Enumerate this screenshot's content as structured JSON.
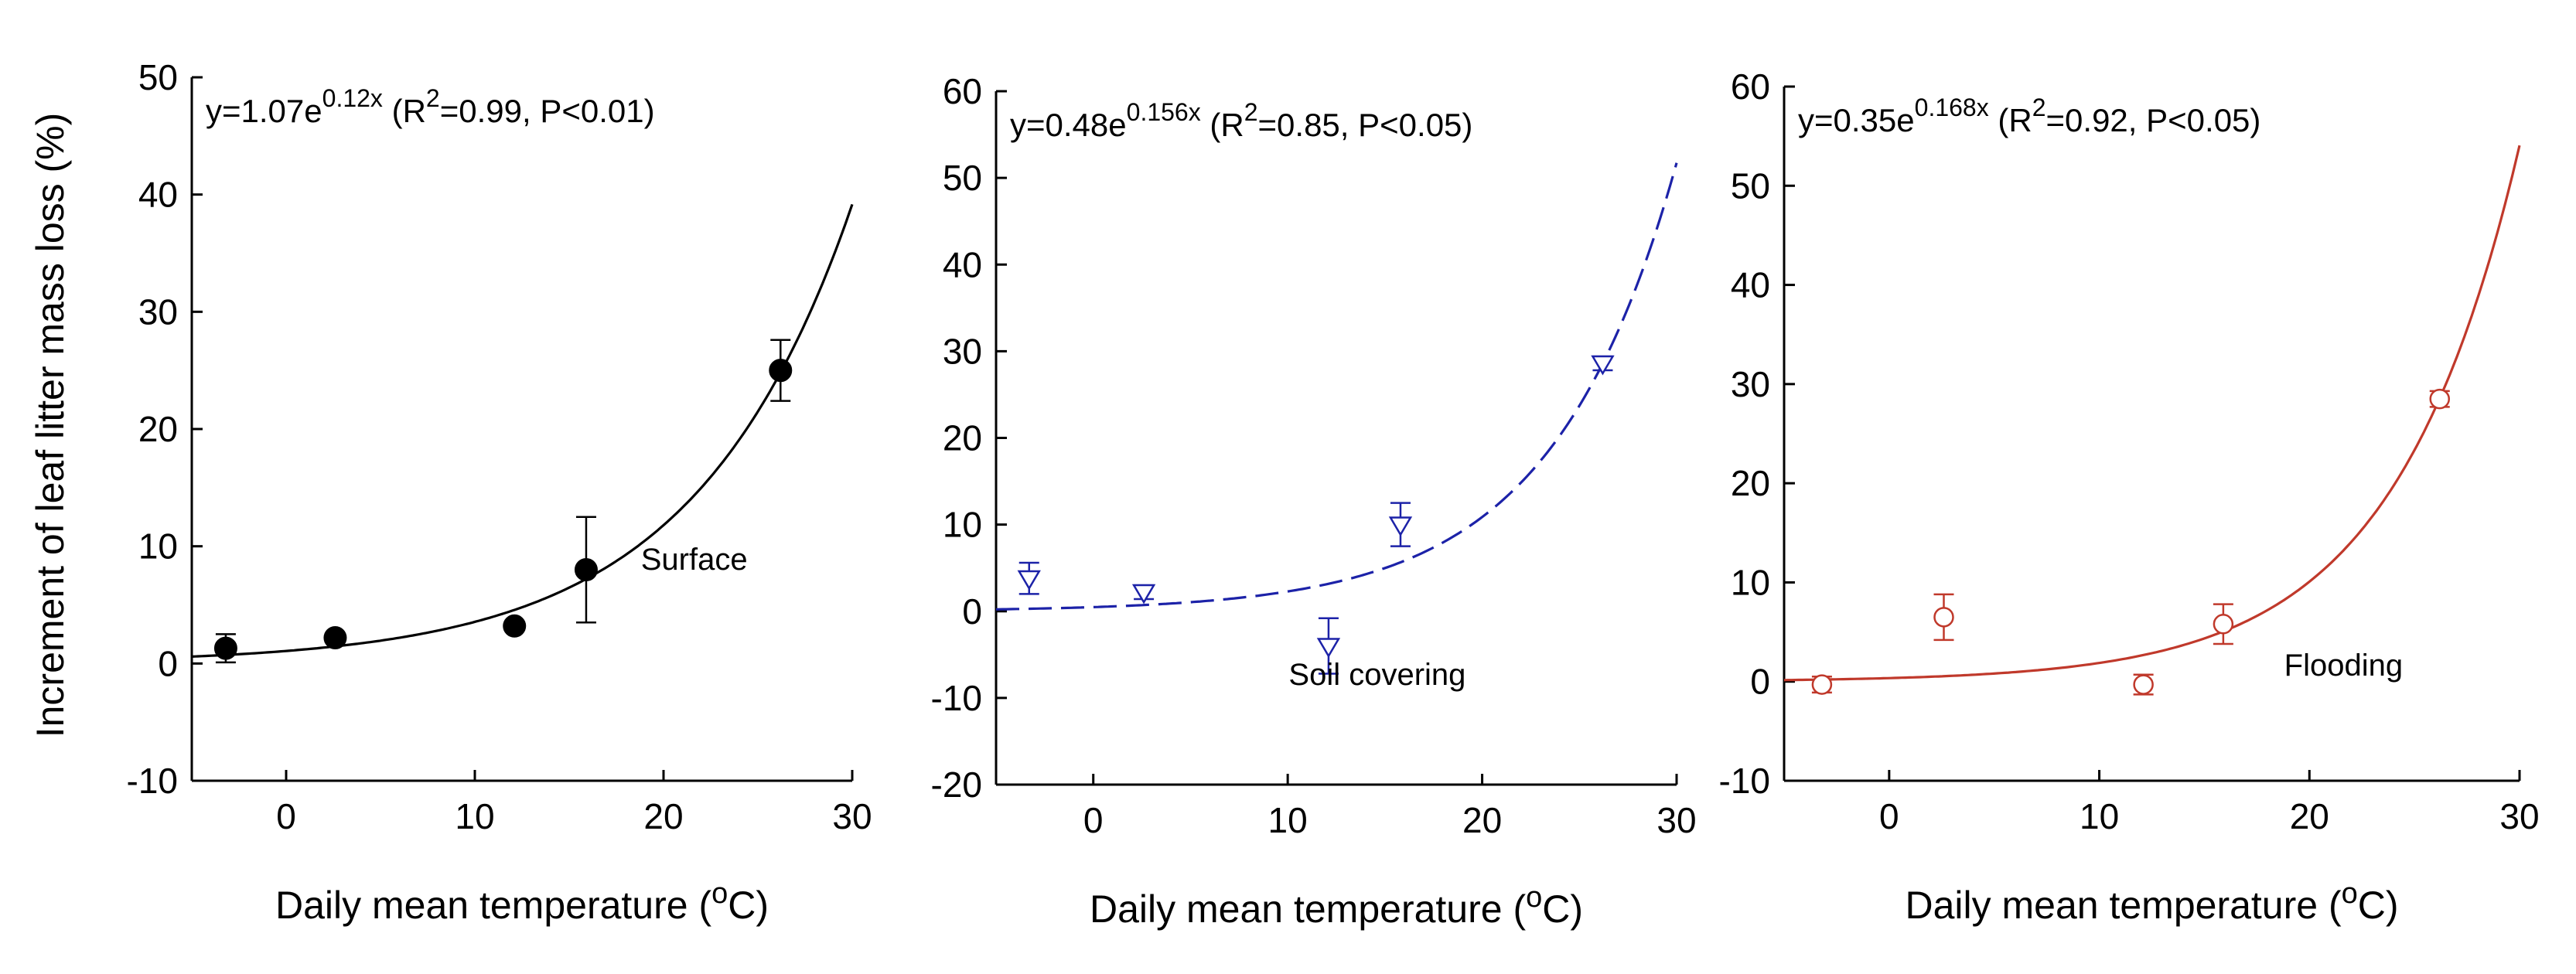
{
  "figure": {
    "ylabel": "Increment of leaf litter mass loss (%)"
  },
  "chart_data": [
    {
      "type": "scatter",
      "panel_label": "Surface",
      "equation": {
        "prefix": "y=1.07e",
        "exponent": "0.12x",
        "r_pre": " (R",
        "r_sup": "2",
        "r_post": "=0.99, P<0.01)"
      },
      "xlabel": {
        "text": "Daily mean temperature (",
        "sup": "o",
        "unit": "C)"
      },
      "xlim": [
        -5,
        30
      ],
      "ylim": [
        -10,
        50
      ],
      "xticks": [
        0,
        10,
        20,
        30
      ],
      "yticks": [
        -10,
        0,
        10,
        20,
        30,
        40,
        50
      ],
      "fit": {
        "a": 1.07,
        "b": 0.12,
        "style": "solid"
      },
      "color": "#000000",
      "marker": "filled-circle",
      "points": [
        {
          "x": -3.2,
          "y": 1.3,
          "err": 1.2
        },
        {
          "x": 2.6,
          "y": 2.2,
          "err": 0
        },
        {
          "x": 12.1,
          "y": 3.2,
          "err": 0
        },
        {
          "x": 15.9,
          "y": 8.0,
          "err": 4.5
        },
        {
          "x": 26.2,
          "y": 25.0,
          "err": 2.6
        }
      ]
    },
    {
      "type": "scatter",
      "panel_label": "Soil covering",
      "equation": {
        "prefix": "y=0.48e",
        "exponent": "0.156x",
        "r_pre": " (R",
        "r_sup": "2",
        "r_post": "=0.85, P<0.05)"
      },
      "xlabel": {
        "text": "Daily mean temperature (",
        "sup": "o",
        "unit": "C)"
      },
      "xlim": [
        -5,
        30
      ],
      "ylim": [
        -20,
        60
      ],
      "xticks": [
        0,
        10,
        20,
        30
      ],
      "yticks": [
        -20,
        -10,
        0,
        10,
        20,
        30,
        40,
        50,
        60
      ],
      "fit": {
        "a": 0.48,
        "b": 0.156,
        "style": "dashed"
      },
      "color": "#1c22a8",
      "marker": "open-triangle-down",
      "points": [
        {
          "x": -3.3,
          "y": 3.8,
          "err": 1.8
        },
        {
          "x": 2.6,
          "y": 2.2,
          "err": 0.8
        },
        {
          "x": 12.1,
          "y": -4.0,
          "err": 3.2
        },
        {
          "x": 15.8,
          "y": 10.0,
          "err": 2.5
        },
        {
          "x": 26.2,
          "y": 28.6,
          "err": 0.8
        }
      ]
    },
    {
      "type": "scatter",
      "panel_label": "Flooding",
      "equation": {
        "prefix": "y=0.35e",
        "exponent": "0.168x",
        "r_pre": " (R",
        "r_sup": "2",
        "r_post": "=0.92, P<0.05)"
      },
      "xlabel": {
        "text": "Daily mean temperature (",
        "sup": "o",
        "unit": "C)"
      },
      "xlim": [
        -5,
        30
      ],
      "ylim": [
        -10,
        60
      ],
      "xticks": [
        0,
        10,
        20,
        30
      ],
      "yticks": [
        -10,
        0,
        10,
        20,
        30,
        40,
        50,
        60
      ],
      "fit": {
        "a": 0.35,
        "b": 0.168,
        "style": "solid"
      },
      "color": "#c0392b",
      "marker": "open-circle",
      "points": [
        {
          "x": -3.2,
          "y": -0.3,
          "err": 0.8
        },
        {
          "x": 2.6,
          "y": 6.5,
          "err": 2.3
        },
        {
          "x": 12.1,
          "y": -0.3,
          "err": 1.0
        },
        {
          "x": 15.9,
          "y": 5.8,
          "err": 2.0
        },
        {
          "x": 26.2,
          "y": 28.5,
          "err": 0.8
        }
      ]
    }
  ]
}
